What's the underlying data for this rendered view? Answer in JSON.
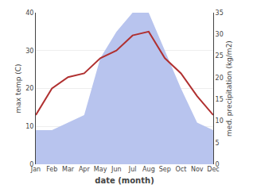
{
  "chart_data": {
    "type": "line",
    "categories": [
      "Jan",
      "Feb",
      "Mar",
      "Apr",
      "May",
      "Jun",
      "Jul",
      "Aug",
      "Sep",
      "Oct",
      "Nov",
      "Dec"
    ],
    "series": [
      {
        "type": "area",
        "color": "#b8c4ee",
        "values": [
          9,
          9,
          11,
          13,
          28,
          35,
          40,
          40,
          30,
          20,
          11,
          9
        ]
      },
      {
        "type": "line",
        "color": "#b03030",
        "values": [
          13,
          20,
          23,
          24,
          28,
          30,
          34,
          35,
          28,
          24,
          18,
          13
        ]
      }
    ],
    "xlabel": "date (month)",
    "ylabel": "max temp (C)",
    "y2label": "med. precipitation (kg/m2)",
    "ylim": [
      0,
      40
    ],
    "yticks": [
      0,
      10,
      20,
      30,
      40
    ],
    "y2lim": [
      0,
      35
    ],
    "y2ticks": [
      0,
      5,
      10,
      15,
      20,
      25,
      30,
      35
    ],
    "grid": true
  }
}
